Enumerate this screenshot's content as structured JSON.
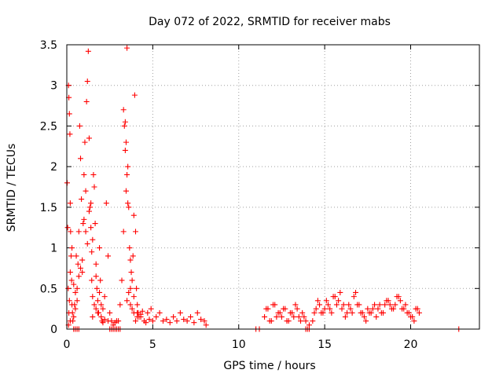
{
  "chart_data": {
    "type": "scatter",
    "title": "Day 072 of 2022, SRMTID for receiver mabs",
    "xlabel": "GPS time / hours",
    "ylabel": "SRMTID / TECUs",
    "xlim": [
      0,
      24
    ],
    "ylim": [
      0,
      3.5
    ],
    "xticks": [
      0,
      5,
      10,
      15,
      20
    ],
    "yticks": [
      0,
      0.5,
      1,
      1.5,
      2,
      2.5,
      3,
      3.5
    ],
    "xtick_labels": [
      "0",
      "5",
      "10",
      "15",
      "20"
    ],
    "ytick_labels": [
      "0",
      "0.5",
      "1",
      "1.5",
      "2",
      "2.5",
      "3",
      "3.5"
    ],
    "grid": true,
    "marker": "plus",
    "color": "#ff0000",
    "series": [
      {
        "x": [
          0.02,
          0.05,
          0.08,
          0.1,
          0.12,
          0.15,
          0.18,
          0.2,
          0.22,
          0.25,
          0.28,
          0.3,
          0.33,
          0.35,
          0.4,
          0.45,
          0.5,
          0.55,
          0.6,
          0.65,
          0.7,
          0.75,
          0.8,
          0.85,
          0.9,
          0.95,
          1.0,
          1.05,
          1.1,
          1.15,
          1.2,
          1.25,
          1.3,
          1.35,
          1.4,
          1.45,
          1.5,
          1.55,
          1.6,
          1.65,
          1.7,
          1.75,
          1.8,
          1.85,
          1.9,
          1.95,
          2.0,
          2.05,
          2.1,
          2.2,
          2.3,
          2.4,
          2.5,
          2.6,
          2.7,
          2.8,
          2.9,
          3.0,
          3.1,
          3.2,
          3.3,
          3.35,
          3.4,
          3.45,
          3.5,
          3.55,
          3.6,
          3.65,
          3.7,
          3.75,
          3.8,
          3.85,
          3.9,
          3.95,
          4.0,
          4.05,
          4.1,
          4.15,
          4.2,
          4.3,
          4.4,
          4.5,
          4.6,
          4.7,
          4.8,
          4.9,
          5.0,
          5.2,
          5.4,
          5.6,
          5.8,
          6.0,
          6.2,
          6.4,
          6.6,
          6.8,
          7.0,
          7.2,
          7.4,
          7.6,
          7.8,
          8.0,
          8.1,
          0.1,
          0.15,
          0.2,
          0.3,
          0.5,
          0.7,
          0.9,
          1.1,
          1.3,
          1.4,
          1.45,
          1.5,
          1.6,
          1.7,
          1.8,
          2.0,
          2.2,
          2.4,
          3.4,
          3.45,
          3.5,
          3.55,
          3.6,
          3.7,
          3.8,
          3.9,
          4.0,
          4.1,
          0.12,
          0.2,
          0.4,
          0.6,
          0.8,
          1.0,
          1.2,
          1.5,
          1.7,
          1.9,
          2.1,
          3.3,
          3.5,
          3.7,
          3.9,
          4.1,
          4.3,
          11.5,
          11.7,
          11.9,
          12.1,
          12.3,
          12.5,
          12.7,
          12.9,
          13.1,
          13.3,
          13.5,
          13.7,
          13.9,
          14.1,
          14.3,
          14.5,
          14.7,
          14.9,
          15.1,
          15.3,
          15.5,
          15.7,
          15.9,
          16.1,
          16.3,
          16.5,
          16.7,
          16.9,
          17.1,
          17.3,
          17.5,
          17.7,
          17.9,
          18.1,
          18.3,
          18.5,
          18.7,
          18.9,
          19.1,
          19.3,
          19.5,
          19.7,
          19.9,
          20.1,
          20.3,
          20.5,
          11.6,
          11.8,
          12.0,
          12.2,
          12.4,
          12.6,
          12.8,
          13.0,
          13.2,
          13.4,
          13.6,
          13.8,
          14.4,
          14.6,
          14.8,
          15.0,
          15.2,
          15.4,
          15.6,
          15.8,
          16.0,
          16.2,
          16.4,
          16.6,
          16.8,
          17.0,
          17.2,
          17.4,
          17.6,
          17.8,
          18.0,
          18.2,
          18.4,
          18.6,
          18.8,
          19.0,
          19.2,
          19.4,
          19.6,
          19.8,
          20.0,
          20.2,
          20.4,
          0.4,
          0.5,
          0.6,
          0.7,
          2.5,
          2.6,
          2.7,
          2.8,
          2.9,
          3.0,
          3.1,
          11.0,
          11.2,
          13.9,
          14.0,
          14.1,
          22.8
        ],
        "y": [
          1.8,
          1.25,
          0.5,
          3.0,
          2.85,
          2.65,
          2.4,
          1.55,
          1.2,
          0.9,
          0.6,
          0.3,
          0.2,
          0.1,
          0.15,
          0.3,
          0.25,
          0.9,
          0.5,
          0.8,
          1.2,
          2.5,
          2.1,
          1.6,
          0.7,
          1.3,
          1.9,
          2.3,
          1.7,
          2.8,
          3.05,
          3.42,
          2.35,
          1.5,
          1.25,
          0.95,
          1.1,
          1.9,
          1.75,
          1.3,
          0.8,
          0.5,
          0.35,
          0.2,
          1.0,
          0.6,
          0.3,
          0.1,
          0.25,
          0.4,
          1.55,
          0.9,
          0.2,
          0.1,
          0.05,
          0.08,
          0.1,
          0.1,
          0.3,
          0.6,
          2.7,
          2.5,
          2.2,
          1.7,
          3.46,
          2.0,
          1.5,
          1.0,
          0.85,
          0.7,
          0.6,
          0.9,
          1.4,
          2.88,
          1.2,
          0.5,
          0.3,
          0.2,
          0.15,
          0.18,
          0.22,
          0.1,
          0.08,
          0.2,
          0.12,
          0.25,
          0.1,
          0.15,
          0.2,
          0.1,
          0.12,
          0.08,
          0.15,
          0.1,
          0.2,
          0.12,
          0.1,
          0.15,
          0.08,
          0.2,
          0.12,
          0.1,
          0.05,
          0.05,
          0.35,
          0.7,
          1.0,
          0.45,
          0.65,
          0.85,
          1.2,
          1.45,
          1.55,
          0.6,
          0.4,
          0.3,
          0.25,
          0.2,
          0.15,
          0.12,
          0.1,
          2.55,
          2.3,
          1.9,
          1.55,
          0.45,
          0.3,
          0.25,
          0.2,
          0.1,
          0.15,
          0.2,
          0.1,
          0.55,
          0.35,
          0.75,
          1.35,
          1.05,
          0.15,
          0.65,
          0.45,
          0.08,
          1.2,
          0.35,
          0.5,
          0.4,
          0.2,
          0.15,
          0.15,
          0.25,
          0.1,
          0.3,
          0.2,
          0.15,
          0.25,
          0.1,
          0.2,
          0.3,
          0.15,
          0.2,
          0.1,
          0.05,
          0.1,
          0.25,
          0.3,
          0.2,
          0.35,
          0.25,
          0.4,
          0.3,
          0.45,
          0.3,
          0.2,
          0.25,
          0.4,
          0.3,
          0.2,
          0.15,
          0.25,
          0.2,
          0.3,
          0.25,
          0.2,
          0.3,
          0.35,
          0.25,
          0.3,
          0.4,
          0.25,
          0.3,
          0.2,
          0.15,
          0.25,
          0.2,
          0.25,
          0.1,
          0.3,
          0.15,
          0.2,
          0.25,
          0.1,
          0.2,
          0.15,
          0.25,
          0.1,
          0.15,
          0.2,
          0.35,
          0.2,
          0.25,
          0.3,
          0.2,
          0.4,
          0.35,
          0.25,
          0.15,
          0.3,
          0.2,
          0.45,
          0.3,
          0.2,
          0.1,
          0.2,
          0.25,
          0.15,
          0.3,
          0.2,
          0.35,
          0.3,
          0.25,
          0.4,
          0.35,
          0.25,
          0.2,
          0.15,
          0.1,
          0.25,
          0,
          0,
          0,
          0,
          0,
          0,
          0,
          0,
          0,
          0,
          0,
          0,
          0,
          0,
          0,
          0,
          0
        ]
      }
    ]
  }
}
